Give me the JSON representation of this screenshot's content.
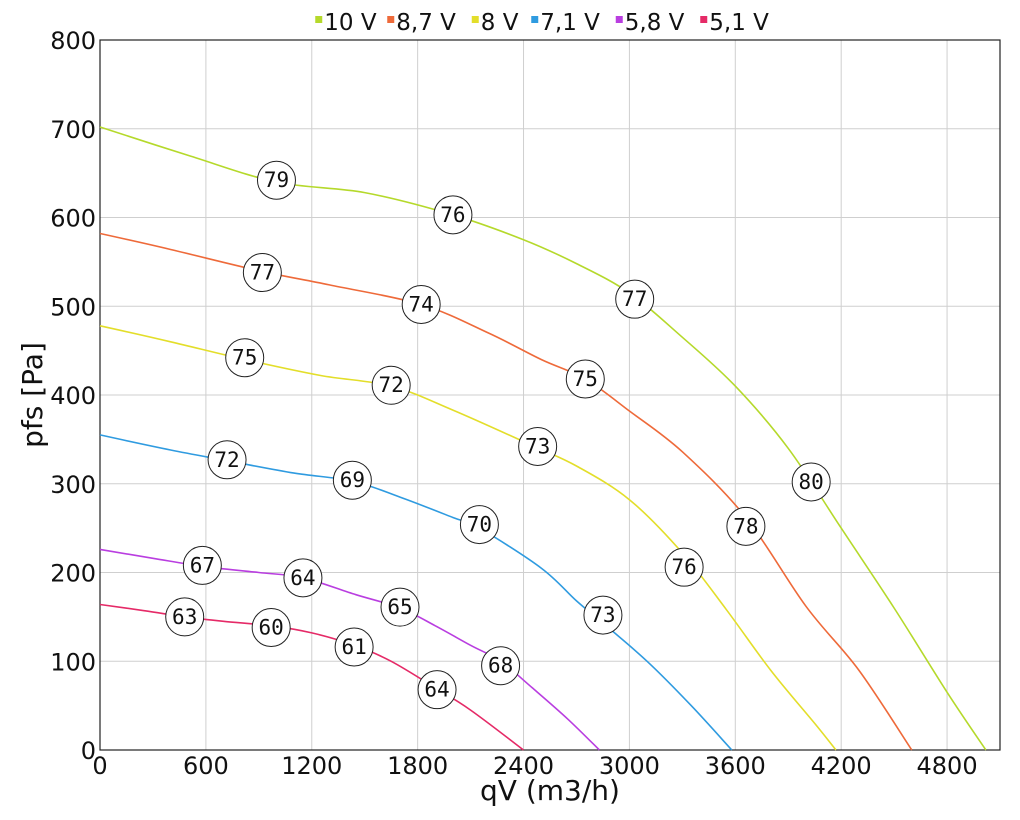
{
  "chart_data": {
    "type": "line",
    "xlabel": "qV (m3/h)",
    "ylabel": "pfs [Pa]",
    "xlim": [
      0,
      5100
    ],
    "ylim": [
      0,
      800
    ],
    "xticks": [
      0,
      600,
      1200,
      1800,
      2400,
      3000,
      3600,
      4200,
      4800
    ],
    "yticks": [
      0,
      100,
      200,
      300,
      400,
      500,
      600,
      700,
      800
    ],
    "grid": true,
    "legend_position": "top-center",
    "series": [
      {
        "name": "10 V",
        "color": "#b5d92b",
        "points": [
          [
            0,
            702
          ],
          [
            500,
            670
          ],
          [
            1000,
            640
          ],
          [
            1500,
            628
          ],
          [
            2000,
            603
          ],
          [
            2400,
            575
          ],
          [
            2700,
            548
          ],
          [
            3000,
            515
          ],
          [
            3300,
            465
          ],
          [
            3600,
            410
          ],
          [
            3900,
            340
          ],
          [
            4200,
            250
          ],
          [
            4500,
            160
          ],
          [
            4800,
            65
          ],
          [
            5020,
            0
          ]
        ],
        "labels": [
          {
            "x": 1000,
            "y": 642,
            "text": "79"
          },
          {
            "x": 2000,
            "y": 603,
            "text": "76"
          },
          {
            "x": 3030,
            "y": 508,
            "text": "77"
          },
          {
            "x": 4030,
            "y": 302,
            "text": "80"
          }
        ]
      },
      {
        "name": "8,7 V",
        "color": "#ee6a3a",
        "points": [
          [
            0,
            582
          ],
          [
            400,
            564
          ],
          [
            900,
            540
          ],
          [
            1300,
            524
          ],
          [
            1820,
            502
          ],
          [
            2200,
            470
          ],
          [
            2500,
            440
          ],
          [
            2750,
            418
          ],
          [
            3000,
            382
          ],
          [
            3300,
            336
          ],
          [
            3660,
            262
          ],
          [
            4000,
            162
          ],
          [
            4300,
            90
          ],
          [
            4600,
            0
          ]
        ],
        "labels": [
          {
            "x": 920,
            "y": 538,
            "text": "77"
          },
          {
            "x": 1820,
            "y": 502,
            "text": "74"
          },
          {
            "x": 2750,
            "y": 418,
            "text": "75"
          },
          {
            "x": 3660,
            "y": 252,
            "text": "78"
          }
        ]
      },
      {
        "name": "8 V",
        "color": "#e3de2a",
        "points": [
          [
            0,
            478
          ],
          [
            400,
            460
          ],
          [
            820,
            440
          ],
          [
            1250,
            422
          ],
          [
            1650,
            410
          ],
          [
            2000,
            383
          ],
          [
            2450,
            343
          ],
          [
            2700,
            320
          ],
          [
            3000,
            282
          ],
          [
            3300,
            222
          ],
          [
            3550,
            158
          ],
          [
            3800,
            90
          ],
          [
            4050,
            30
          ],
          [
            4170,
            0
          ]
        ],
        "labels": [
          {
            "x": 820,
            "y": 442,
            "text": "75"
          },
          {
            "x": 1650,
            "y": 411,
            "text": "72"
          },
          {
            "x": 2480,
            "y": 342,
            "text": "73"
          },
          {
            "x": 3310,
            "y": 206,
            "text": "76"
          }
        ]
      },
      {
        "name": "7,1 V",
        "color": "#2f9be0",
        "points": [
          [
            0,
            355
          ],
          [
            400,
            338
          ],
          [
            720,
            326
          ],
          [
            1100,
            312
          ],
          [
            1430,
            303
          ],
          [
            1700,
            285
          ],
          [
            2000,
            262
          ],
          [
            2150,
            250
          ],
          [
            2500,
            205
          ],
          [
            2700,
            168
          ],
          [
            2850,
            143
          ],
          [
            3100,
            100
          ],
          [
            3350,
            50
          ],
          [
            3580,
            0
          ]
        ],
        "labels": [
          {
            "x": 720,
            "y": 327,
            "text": "72"
          },
          {
            "x": 1430,
            "y": 304,
            "text": "69"
          },
          {
            "x": 2150,
            "y": 254,
            "text": "70"
          },
          {
            "x": 2850,
            "y": 152,
            "text": "73"
          }
        ]
      },
      {
        "name": "5,8 V",
        "color": "#b93ee0",
        "points": [
          [
            0,
            226
          ],
          [
            300,
            216
          ],
          [
            580,
            207
          ],
          [
            900,
            200
          ],
          [
            1150,
            194
          ],
          [
            1450,
            175
          ],
          [
            1700,
            160
          ],
          [
            1900,
            140
          ],
          [
            2100,
            118
          ],
          [
            2270,
            100
          ],
          [
            2450,
            70
          ],
          [
            2650,
            35
          ],
          [
            2830,
            0
          ]
        ],
        "labels": [
          {
            "x": 580,
            "y": 208,
            "text": "67"
          },
          {
            "x": 1150,
            "y": 194,
            "text": "64"
          },
          {
            "x": 1700,
            "y": 161,
            "text": "65"
          },
          {
            "x": 2270,
            "y": 95,
            "text": "68"
          }
        ]
      },
      {
        "name": "5,1 V",
        "color": "#e52a67",
        "points": [
          [
            0,
            164
          ],
          [
            250,
            157
          ],
          [
            480,
            150
          ],
          [
            700,
            145
          ],
          [
            970,
            140
          ],
          [
            1200,
            132
          ],
          [
            1440,
            118
          ],
          [
            1650,
            100
          ],
          [
            1900,
            70
          ],
          [
            2100,
            45
          ],
          [
            2400,
            0
          ]
        ],
        "labels": [
          {
            "x": 480,
            "y": 150,
            "text": "63"
          },
          {
            "x": 970,
            "y": 138,
            "text": "60"
          },
          {
            "x": 1440,
            "y": 116,
            "text": "61"
          },
          {
            "x": 1910,
            "y": 68,
            "text": "64"
          }
        ]
      }
    ]
  }
}
